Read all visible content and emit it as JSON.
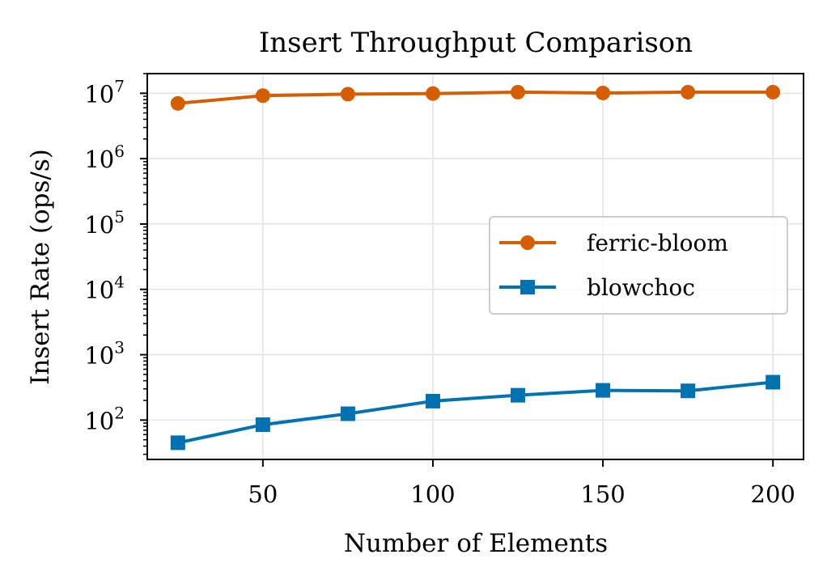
{
  "chart_data": {
    "type": "line",
    "title": "Insert Throughput Comparison",
    "xlabel": "Number of Elements",
    "ylabel": "Insert Rate (ops/s)",
    "yscale": "log",
    "grid": true,
    "legend_position": "center-right",
    "x": [
      25,
      50,
      75,
      100,
      125,
      150,
      175,
      200
    ],
    "xlim": [
      16,
      209
    ],
    "ylim": [
      25,
      20000000
    ],
    "xticks": [
      50,
      100,
      150,
      200
    ],
    "xtick_labels": [
      "50",
      "100",
      "150",
      "200"
    ],
    "yticks": [
      100,
      1000,
      10000,
      100000,
      1000000,
      10000000
    ],
    "ytick_base": "10",
    "ytick_exponents": [
      "2",
      "3",
      "4",
      "5",
      "6",
      "7"
    ],
    "series": [
      {
        "name": "ferric-bloom",
        "color": "#d55e00",
        "marker": "circle",
        "values": [
          7000000,
          9200000,
          9700000,
          9900000,
          10400000,
          10100000,
          10400000,
          10400000
        ]
      },
      {
        "name": "blowchoc",
        "color": "#0072b2",
        "marker": "square",
        "values": [
          45,
          85,
          125,
          195,
          240,
          285,
          280,
          380
        ]
      }
    ]
  }
}
